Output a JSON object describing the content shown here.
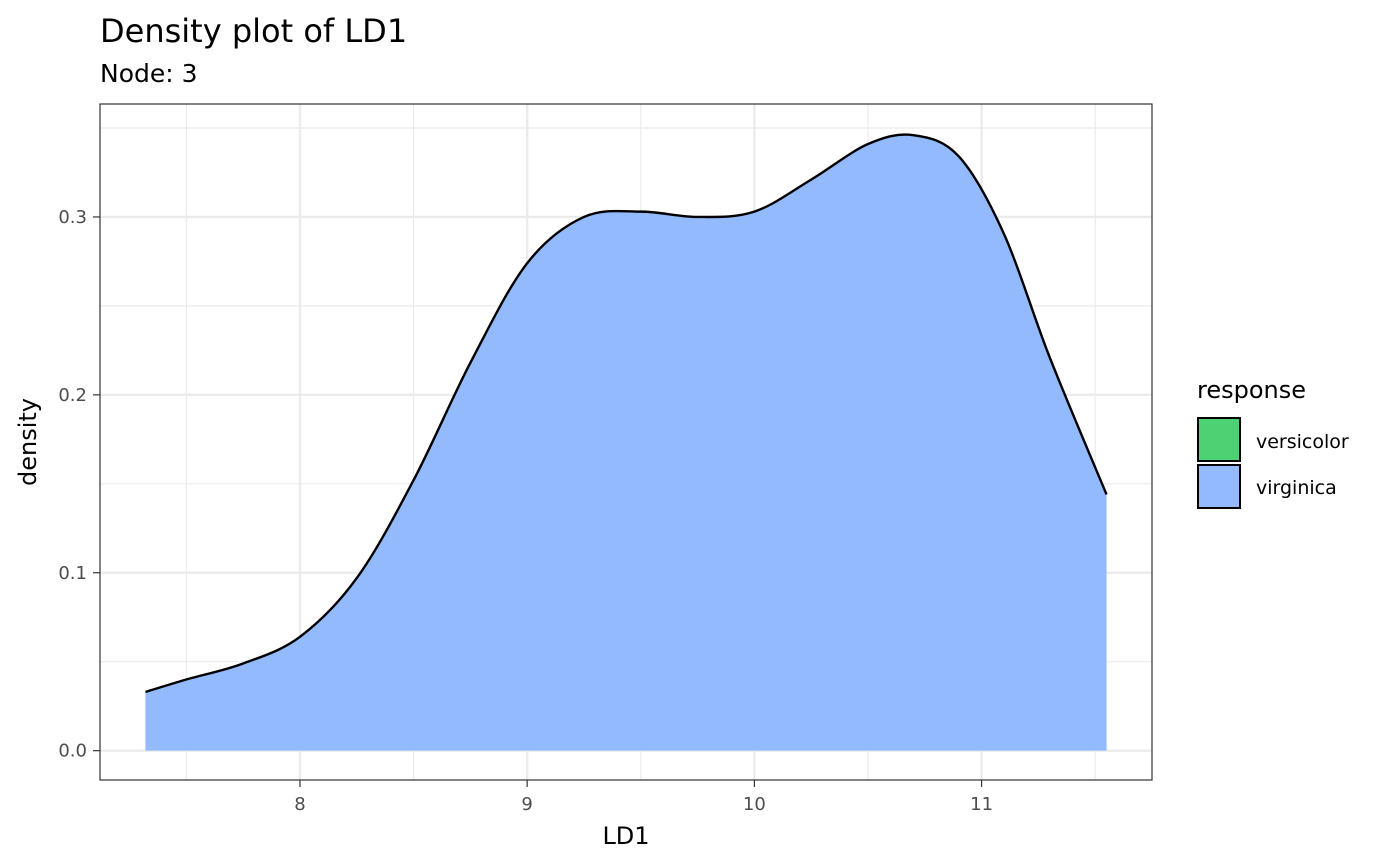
{
  "chart_data": {
    "type": "area",
    "title": "Density plot of LD1",
    "subtitle": "Node: 3",
    "xlabel": "LD1",
    "ylabel": "density",
    "xlim": [
      7.12,
      11.75
    ],
    "ylim": [
      -0.0165,
      0.3635
    ],
    "x_ticks": [
      8,
      9,
      10,
      11
    ],
    "x_tick_labels": [
      "8",
      "9",
      "10",
      "11"
    ],
    "y_ticks": [
      0.0,
      0.1,
      0.2,
      0.3
    ],
    "y_tick_labels": [
      "0.0",
      "0.1",
      "0.2",
      "0.3"
    ],
    "grid": true,
    "legend": {
      "title": "response",
      "position": "right",
      "entries": [
        {
          "label": "versicolor",
          "color": "#4CD173"
        },
        {
          "label": "virginica",
          "color": "#93BAFC"
        }
      ]
    },
    "series": [
      {
        "name": "virginica",
        "color": "#93BAFC",
        "x": [
          7.32,
          7.5,
          7.75,
          8.0,
          8.25,
          8.5,
          8.75,
          9.0,
          9.25,
          9.5,
          9.75,
          10.0,
          10.25,
          10.5,
          10.7,
          10.9,
          11.1,
          11.3,
          11.55
        ],
        "y": [
          0.033,
          0.04,
          0.049,
          0.064,
          0.097,
          0.152,
          0.218,
          0.274,
          0.3,
          0.303,
          0.3,
          0.303,
          0.321,
          0.341,
          0.346,
          0.334,
          0.29,
          0.221,
          0.144
        ]
      }
    ]
  }
}
